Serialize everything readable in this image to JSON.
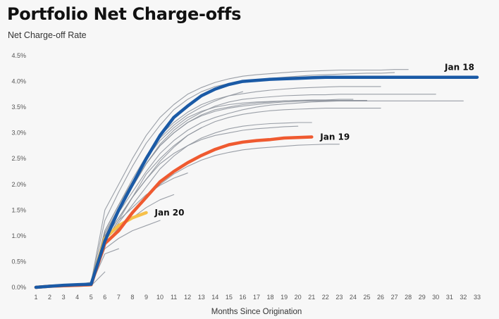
{
  "chart_data": {
    "type": "line",
    "title": "Portfolio Net Charge-offs",
    "ylabel": "Net Charge-off Rate",
    "xlabel": "Months Since Origination",
    "x_ticks": [
      1,
      2,
      3,
      4,
      5,
      6,
      7,
      8,
      9,
      10,
      11,
      12,
      13,
      14,
      15,
      16,
      17,
      18,
      19,
      20,
      21,
      22,
      23,
      24,
      25,
      26,
      27,
      28,
      29,
      30,
      31,
      32,
      33
    ],
    "y_ticks": [
      "0.0%",
      "0.5%",
      "1.0%",
      "1.5%",
      "2.0%",
      "2.5%",
      "3.0%",
      "3.5%",
      "4.0%",
      "4.5%"
    ],
    "xlim": [
      1,
      33
    ],
    "ylim": [
      0,
      4.5
    ],
    "grid": false,
    "highlight_series": [
      {
        "name": "Jan 18",
        "color": "#1a5aa6",
        "x": [
          1,
          2,
          3,
          4,
          5,
          6,
          7,
          8,
          9,
          10,
          11,
          12,
          13,
          14,
          15,
          16,
          17,
          18,
          19,
          20,
          21,
          22,
          23,
          24,
          25,
          26,
          27,
          28,
          29,
          30,
          31,
          32,
          33
        ],
        "y": [
          0,
          0.02,
          0.04,
          0.05,
          0.06,
          0.9,
          1.5,
          2.0,
          2.5,
          2.95,
          3.3,
          3.52,
          3.72,
          3.85,
          3.94,
          4.0,
          4.02,
          4.04,
          4.05,
          4.06,
          4.07,
          4.08,
          4.08,
          4.08,
          4.08,
          4.08,
          4.08,
          4.08,
          4.08,
          4.08,
          4.08,
          4.08,
          4.08
        ]
      },
      {
        "name": "Jan 19",
        "color": "#ef5a30",
        "x": [
          1,
          2,
          3,
          4,
          5,
          6,
          7,
          8,
          9,
          10,
          11,
          12,
          13,
          14,
          15,
          16,
          17,
          18,
          19,
          20,
          21
        ],
        "y": [
          0,
          0.02,
          0.03,
          0.04,
          0.05,
          0.85,
          1.1,
          1.45,
          1.75,
          2.05,
          2.25,
          2.42,
          2.56,
          2.68,
          2.77,
          2.82,
          2.85,
          2.87,
          2.9,
          2.91,
          2.92
        ]
      },
      {
        "name": "Jan 20",
        "color": "#f6c04a",
        "x": [
          1,
          2,
          3,
          4,
          5,
          6,
          7,
          8,
          9
        ],
        "y": [
          0,
          0.02,
          0.03,
          0.04,
          0.05,
          0.95,
          1.2,
          1.35,
          1.45
        ]
      }
    ],
    "background_series": [
      {
        "color": "#8a8f99",
        "x": [
          1,
          2,
          3,
          4,
          5,
          6,
          7,
          8,
          9,
          10,
          11,
          12,
          13,
          14,
          15,
          16,
          17,
          18,
          19,
          20,
          21,
          22,
          23,
          24,
          25,
          26,
          27,
          28
        ],
        "y": [
          0,
          0.01,
          0.03,
          0.05,
          0.1,
          1.5,
          2.0,
          2.5,
          2.95,
          3.3,
          3.55,
          3.75,
          3.88,
          3.98,
          4.05,
          4.1,
          4.13,
          4.15,
          4.17,
          4.19,
          4.2,
          4.21,
          4.22,
          4.22,
          4.22,
          4.22,
          4.23,
          4.23
        ]
      },
      {
        "color": "#8a8f99",
        "x": [
          1,
          2,
          3,
          4,
          5,
          6,
          7,
          8,
          9,
          10,
          11,
          12,
          13,
          14,
          15,
          16,
          17,
          18,
          19,
          20,
          21,
          22,
          23,
          24,
          25,
          26,
          27
        ],
        "y": [
          0,
          0.01,
          0.03,
          0.04,
          0.08,
          1.3,
          1.85,
          2.35,
          2.8,
          3.15,
          3.45,
          3.65,
          3.8,
          3.9,
          3.96,
          4.0,
          4.03,
          4.06,
          4.08,
          4.1,
          4.12,
          4.13,
          4.14,
          4.15,
          4.16,
          4.16,
          4.17
        ]
      },
      {
        "color": "#8a8f99",
        "x": [
          1,
          2,
          3,
          4,
          5,
          6,
          7,
          8,
          9,
          10,
          11,
          12,
          13,
          14,
          15,
          16,
          17,
          18,
          19,
          20,
          21,
          22,
          23,
          24,
          25,
          26
        ],
        "y": [
          0,
          0.01,
          0.02,
          0.04,
          0.07,
          1.1,
          1.6,
          2.1,
          2.55,
          2.95,
          3.2,
          3.4,
          3.55,
          3.65,
          3.72,
          3.76,
          3.8,
          3.83,
          3.85,
          3.87,
          3.88,
          3.89,
          3.9,
          3.9,
          3.9,
          3.9
        ]
      },
      {
        "color": "#8a8f99",
        "x": [
          1,
          2,
          3,
          4,
          5,
          6,
          7,
          8,
          9,
          10,
          11,
          12,
          13,
          14,
          15,
          16,
          17,
          18,
          19,
          20,
          21,
          22,
          23,
          24,
          25,
          26,
          27,
          28,
          29,
          30,
          31,
          32
        ],
        "y": [
          0,
          0.01,
          0.02,
          0.04,
          0.06,
          1.0,
          1.5,
          1.95,
          2.4,
          2.75,
          3.0,
          3.2,
          3.33,
          3.42,
          3.48,
          3.52,
          3.55,
          3.58,
          3.6,
          3.61,
          3.62,
          3.62,
          3.62,
          3.62,
          3.62,
          3.62,
          3.62,
          3.62,
          3.62,
          3.62,
          3.62,
          3.62
        ]
      },
      {
        "color": "#8a8f99",
        "x": [
          1,
          2,
          3,
          4,
          5,
          6,
          7,
          8,
          9,
          10,
          11,
          12,
          13,
          14,
          15,
          16,
          17,
          18,
          19,
          20,
          21,
          22,
          23,
          24,
          25
        ],
        "y": [
          0,
          0.01,
          0.02,
          0.04,
          0.06,
          1.05,
          1.55,
          2.05,
          2.5,
          2.85,
          3.1,
          3.3,
          3.42,
          3.5,
          3.55,
          3.58,
          3.6,
          3.61,
          3.62,
          3.63,
          3.63,
          3.63,
          3.63,
          3.63,
          3.63
        ]
      },
      {
        "color": "#8a8f99",
        "x": [
          1,
          2,
          3,
          4,
          5,
          6,
          7,
          8,
          9,
          10,
          11,
          12,
          13,
          14,
          15,
          16,
          17,
          18,
          19,
          20,
          21,
          22,
          23,
          24,
          25,
          26,
          27,
          28,
          29,
          30
        ],
        "y": [
          0,
          0.01,
          0.02,
          0.04,
          0.06,
          1.05,
          1.5,
          1.95,
          2.4,
          2.78,
          3.05,
          3.25,
          3.4,
          3.52,
          3.6,
          3.65,
          3.68,
          3.7,
          3.72,
          3.73,
          3.74,
          3.74,
          3.75,
          3.75,
          3.75,
          3.75,
          3.75,
          3.75,
          3.75,
          3.75
        ]
      },
      {
        "color": "#8a8f99",
        "x": [
          1,
          2,
          3,
          4,
          5,
          6,
          7,
          8,
          9,
          10,
          11,
          12,
          13,
          14,
          15,
          16,
          17,
          18,
          19,
          20,
          21,
          22,
          23,
          24
        ],
        "y": [
          0,
          0.01,
          0.02,
          0.04,
          0.06,
          1.0,
          1.45,
          1.95,
          2.4,
          2.75,
          3.0,
          3.2,
          3.35,
          3.45,
          3.5,
          3.55,
          3.58,
          3.6,
          3.62,
          3.63,
          3.64,
          3.64,
          3.65,
          3.65
        ]
      },
      {
        "color": "#8a8f99",
        "x": [
          1,
          2,
          3,
          4,
          5,
          6,
          7,
          8,
          9,
          10,
          11,
          12,
          13,
          14,
          15,
          16
        ],
        "y": [
          0,
          0.01,
          0.02,
          0.04,
          0.06,
          1.1,
          1.6,
          2.05,
          2.5,
          2.9,
          3.15,
          3.35,
          3.5,
          3.62,
          3.72,
          3.8
        ]
      },
      {
        "color": "#8a8f99",
        "x": [
          1,
          2,
          3,
          4,
          5,
          6,
          7,
          8,
          9,
          10,
          11,
          12,
          13,
          14,
          15,
          16,
          17,
          18,
          19,
          20,
          21,
          22,
          23,
          24,
          25
        ],
        "y": [
          0,
          0.01,
          0.02,
          0.04,
          0.06,
          1.0,
          1.45,
          1.85,
          2.25,
          2.6,
          2.85,
          3.05,
          3.2,
          3.3,
          3.38,
          3.45,
          3.5,
          3.54,
          3.56,
          3.58,
          3.6,
          3.61,
          3.62,
          3.62,
          3.62
        ]
      },
      {
        "color": "#8a8f99",
        "x": [
          1,
          2,
          3,
          4,
          5,
          6,
          7,
          8,
          9,
          10,
          11,
          12,
          13,
          14,
          15,
          16,
          17,
          18,
          19,
          20
        ],
        "y": [
          0,
          0.01,
          0.02,
          0.04,
          0.06,
          0.95,
          1.35,
          1.75,
          2.1,
          2.4,
          2.6,
          2.75,
          2.87,
          2.95,
          3.0,
          3.05,
          3.08,
          3.1,
          3.12,
          3.13
        ]
      },
      {
        "color": "#8a8f99",
        "x": [
          1,
          2,
          3,
          4,
          5,
          6,
          7,
          8,
          9,
          10,
          11,
          12,
          13,
          14,
          15,
          16,
          17,
          18,
          19,
          20,
          21,
          22,
          23,
          24,
          25,
          26
        ],
        "y": [
          0,
          0.01,
          0.02,
          0.04,
          0.06,
          0.95,
          1.35,
          1.75,
          2.1,
          2.45,
          2.72,
          2.95,
          3.1,
          3.22,
          3.3,
          3.36,
          3.4,
          3.43,
          3.45,
          3.46,
          3.47,
          3.48,
          3.48,
          3.48,
          3.48,
          3.48
        ]
      },
      {
        "color": "#8a8f99",
        "x": [
          1,
          2,
          3,
          4,
          5,
          6,
          7,
          8,
          9,
          10,
          11,
          12,
          13,
          14,
          15,
          16,
          17,
          18,
          19,
          20,
          21,
          22,
          23
        ],
        "y": [
          0,
          0.01,
          0.02,
          0.03,
          0.05,
          0.85,
          1.15,
          1.45,
          1.75,
          2.0,
          2.2,
          2.35,
          2.47,
          2.56,
          2.62,
          2.67,
          2.7,
          2.72,
          2.74,
          2.76,
          2.77,
          2.78,
          2.78
        ]
      },
      {
        "color": "#8a8f99",
        "x": [
          1,
          2,
          3,
          4,
          5,
          6,
          7,
          8,
          9,
          10,
          11,
          12,
          13
        ],
        "y": [
          0,
          0.01,
          0.02,
          0.03,
          0.05,
          0.9,
          1.3,
          1.75,
          2.2,
          2.5,
          2.75,
          2.95,
          3.1
        ]
      },
      {
        "color": "#8a8f99",
        "x": [
          1,
          2,
          3,
          4,
          5,
          6,
          7,
          8,
          9,
          10,
          11
        ],
        "y": [
          0,
          0.01,
          0.02,
          0.03,
          0.05,
          0.85,
          1.15,
          1.35,
          1.55,
          1.7,
          1.8
        ]
      },
      {
        "color": "#8a8f99",
        "x": [
          1,
          2,
          3,
          4,
          5,
          6,
          7,
          8,
          9,
          10,
          11,
          12
        ],
        "y": [
          0,
          0.01,
          0.02,
          0.03,
          0.05,
          0.9,
          1.3,
          1.55,
          1.8,
          1.98,
          2.12,
          2.22
        ]
      },
      {
        "color": "#8a8f99",
        "x": [
          1,
          2,
          3,
          4,
          5,
          6,
          7,
          8,
          9,
          10
        ],
        "y": [
          0,
          0.01,
          0.02,
          0.03,
          0.05,
          0.75,
          0.95,
          1.1,
          1.2,
          1.3
        ]
      },
      {
        "color": "#8a8f99",
        "x": [
          1,
          2,
          3,
          4,
          5,
          6,
          7,
          8,
          9,
          10,
          11,
          12,
          13,
          14,
          15,
          16,
          17,
          18,
          19,
          20,
          21
        ],
        "y": [
          0,
          0.01,
          0.02,
          0.03,
          0.05,
          0.9,
          1.25,
          1.6,
          1.95,
          2.3,
          2.55,
          2.75,
          2.9,
          3.0,
          3.08,
          3.13,
          3.16,
          3.18,
          3.19,
          3.2,
          3.2
        ]
      },
      {
        "color": "#8a8f99",
        "x": [
          1,
          2,
          3,
          4,
          5,
          6,
          7
        ],
        "y": [
          0,
          0.01,
          0.02,
          0.03,
          0.05,
          0.65,
          0.75
        ]
      },
      {
        "color": "#8a8f99",
        "x": [
          1,
          2,
          3,
          4,
          5,
          6
        ],
        "y": [
          0,
          0.0,
          0.01,
          0.02,
          0.03,
          0.3
        ]
      }
    ]
  }
}
